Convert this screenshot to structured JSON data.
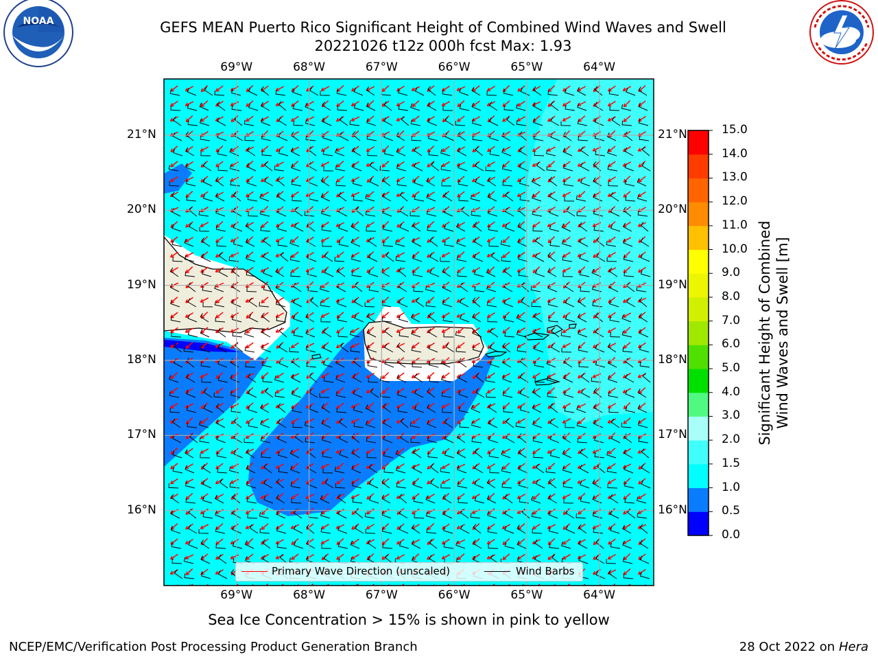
{
  "header": {
    "title_line1": "GEFS MEAN Puerto Rico Significant Height of Combined Wind Waves and Swell",
    "title_line2": "20221026 t12z 000h fcst   Max: 1.93"
  },
  "logos": {
    "noaa": {
      "icon": "noaa-logo-icon",
      "text": "NOAA",
      "ring_text": "NATIONAL OCEANIC AND ATMOSPHERIC ADMINISTRATION · U.S. DEPARTMENT OF COMMERCE"
    },
    "nws": {
      "icon": "nws-logo-icon",
      "ring_text": "NATIONAL WEATHER SERVICE"
    }
  },
  "map": {
    "lon_labels": [
      "69°W",
      "68°W",
      "67°W",
      "66°W",
      "65°W",
      "64°W"
    ],
    "lat_labels": [
      "21°N",
      "20°N",
      "19°N",
      "18°N",
      "17°N",
      "16°N"
    ],
    "lon_range": [
      -70.0,
      -63.25
    ],
    "lat_range": [
      15.0,
      21.75
    ],
    "grid": true,
    "legend": {
      "placement": "lower-center",
      "items": [
        {
          "label": "Primary Wave Direction (unscaled)",
          "color": "#ff0000"
        },
        {
          "label": "Wind Barbs",
          "color": "#000000"
        }
      ]
    }
  },
  "colorbar": {
    "label": "Significant Height of Combined Wind Waves and Swell [m]",
    "label_line1": "Significant Height of Combined",
    "label_line2": "Wind Waves and Swell [m]",
    "ticks": [
      "0.0",
      "0.5",
      "1.0",
      "1.5",
      "2.0",
      "3.0",
      "4.0",
      "5.0",
      "6.0",
      "7.0",
      "8.0",
      "9.0",
      "10.0",
      "11.0",
      "12.0",
      "13.0",
      "14.0",
      "15.0"
    ],
    "colors": [
      "#0000ff",
      "#0a7cff",
      "#00ffff",
      "#40fffa",
      "#a8fffa",
      "#50fa80",
      "#00e000",
      "#50e000",
      "#a0e800",
      "#d0f000",
      "#ecf600",
      "#ffff00",
      "#ffc000",
      "#ff8c00",
      "#ff6400",
      "#ff3c00",
      "#ff0000"
    ]
  },
  "note": "Sea Ice Concentration > 15% is shown in pink to yellow",
  "footer": {
    "left": "NCEP/EMC/Verification Post Processing Product Generation Branch",
    "date": "28 Oct 2022 on",
    "machine": "Hera"
  }
}
